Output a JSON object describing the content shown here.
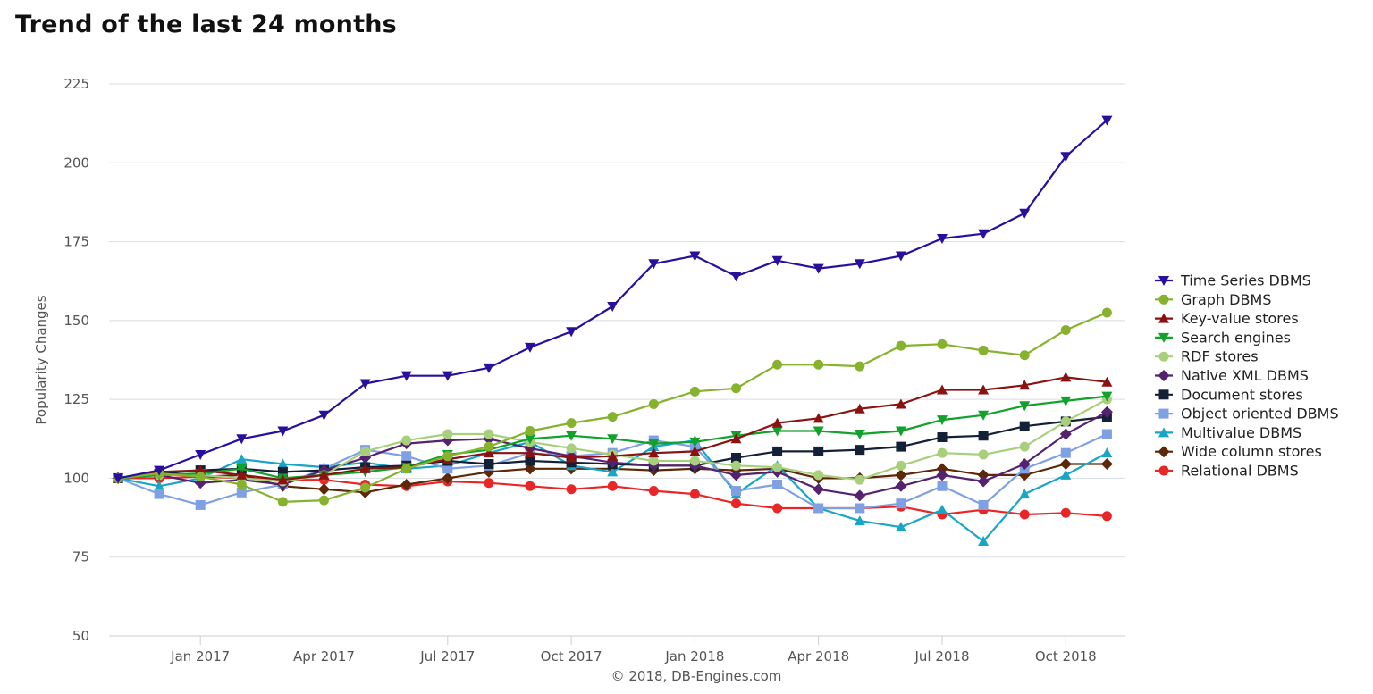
{
  "page": {
    "heading": "Trend of the last 24 months",
    "credit": "© 2018, DB-Engines.com"
  },
  "chart_data": {
    "type": "line",
    "title": "Trend of the last 24 months",
    "ylabel": "Popularity Changes",
    "xlabel": "",
    "ylim": [
      50,
      225
    ],
    "yticks": [
      50,
      75,
      100,
      125,
      150,
      175,
      200,
      225
    ],
    "x": [
      "Nov 2016",
      "Dec 2016",
      "Jan 2017",
      "Feb 2017",
      "Mar 2017",
      "Apr 2017",
      "May 2017",
      "Jun 2017",
      "Jul 2017",
      "Aug 2017",
      "Sep 2017",
      "Oct 2017",
      "Nov 2017",
      "Dec 2017",
      "Jan 2018",
      "Feb 2018",
      "Mar 2018",
      "Apr 2018",
      "May 2018",
      "Jun 2018",
      "Jul 2018",
      "Aug 2018",
      "Sep 2018",
      "Oct 2018",
      "Nov 2018"
    ],
    "xtick_labels": [
      {
        "at": "Jan 2017",
        "label": "Jan 2017"
      },
      {
        "at": "Apr 2017",
        "label": "Apr 2017"
      },
      {
        "at": "Jul 2017",
        "label": "Jul 2017"
      },
      {
        "at": "Oct 2017",
        "label": "Oct 2017"
      },
      {
        "at": "Jan 2018",
        "label": "Jan 2018"
      },
      {
        "at": "Apr 2018",
        "label": "Apr 2018"
      },
      {
        "at": "Jul 2018",
        "label": "Jul 2018"
      },
      {
        "at": "Oct 2018",
        "label": "Oct 2018"
      }
    ],
    "grid": "horizontal",
    "legend_position": "right",
    "series": [
      {
        "name": "Time Series DBMS",
        "color": "#2a0f9e",
        "marker": "triangle-down",
        "values": [
          100,
          102.5,
          107.5,
          112.5,
          115,
          120,
          130,
          132.5,
          132.5,
          135,
          141.5,
          146.5,
          154.5,
          168,
          170.5,
          164,
          169,
          166.5,
          168,
          170.5,
          176,
          177.5,
          184,
          202,
          213.5
        ]
      },
      {
        "name": "Graph DBMS",
        "color": "#86b22d",
        "marker": "circle",
        "values": [
          100,
          101.5,
          100.5,
          98,
          92.5,
          93,
          97,
          103,
          107,
          110,
          115,
          117.5,
          119.5,
          123.5,
          127.5,
          128.5,
          136,
          136,
          135.5,
          142,
          142.5,
          140.5,
          139,
          147,
          152.5
        ]
      },
      {
        "name": "Key-value stores",
        "color": "#8a1212",
        "marker": "triangle-up",
        "values": [
          100,
          102,
          102.5,
          101,
          99.5,
          101,
          103,
          103.5,
          106,
          108,
          108,
          106.5,
          107,
          108,
          108.5,
          112.5,
          117.5,
          119,
          122,
          123.5,
          128,
          128,
          129.5,
          132,
          130.5
        ]
      },
      {
        "name": "Search engines",
        "color": "#12a12a",
        "marker": "triangle-down",
        "values": [
          100,
          101,
          101.5,
          103,
          100,
          101,
          102,
          103.5,
          107.5,
          109,
          112.5,
          113.5,
          112.5,
          111,
          111.5,
          113.5,
          115,
          115,
          114,
          115,
          118.5,
          120,
          123,
          124.5,
          126
        ]
      },
      {
        "name": "RDF stores",
        "color": "#a8cf7c",
        "marker": "circle",
        "values": [
          100,
          101,
          101,
          100,
          99,
          101,
          108.5,
          112,
          114,
          114,
          111.5,
          109.5,
          107.5,
          105.5,
          105.5,
          104,
          103.5,
          101,
          99.5,
          104,
          108,
          107.5,
          110,
          118,
          125
        ]
      },
      {
        "name": "Native XML DBMS",
        "color": "#55226e",
        "marker": "diamond",
        "values": [
          100,
          101,
          98.5,
          99.5,
          98,
          102.5,
          106.5,
          111,
          112,
          112.5,
          109.5,
          107,
          105,
          104,
          104,
          101,
          102,
          96.5,
          94.5,
          97.5,
          101,
          99,
          104.5,
          114,
          121
        ]
      },
      {
        "name": "Document stores",
        "color": "#132036",
        "marker": "square",
        "values": [
          100,
          101.5,
          102.5,
          103,
          102,
          102.5,
          103.5,
          104,
          105.5,
          104.5,
          105.5,
          105,
          104.5,
          104,
          104,
          106.5,
          108.5,
          108.5,
          109,
          110,
          113,
          113.5,
          116.5,
          118,
          119.5
        ]
      },
      {
        "name": "Object oriented DBMS",
        "color": "#7fa1e3",
        "marker": "square",
        "values": [
          100,
          95,
          91.5,
          95.5,
          98,
          103,
          109,
          107,
          103,
          104,
          108,
          107,
          108,
          112,
          110,
          96,
          98,
          90.5,
          90.5,
          92,
          97.5,
          91.5,
          103,
          108,
          114
        ]
      },
      {
        "name": "Multivalue DBMS",
        "color": "#18a5c6",
        "marker": "triangle-up",
        "values": [
          100,
          97.5,
          100,
          106,
          104.5,
          103.5,
          105,
          103,
          104,
          108,
          111.5,
          104,
          102,
          110,
          112,
          95,
          104,
          90.5,
          86.5,
          84.5,
          90,
          80,
          95,
          101,
          108
        ]
      },
      {
        "name": "Wide column stores",
        "color": "#5c2808",
        "marker": "diamond",
        "values": [
          100,
          102,
          100.5,
          101,
          97.5,
          96.5,
          95.5,
          98,
          100,
          102,
          103,
          103,
          103,
          102.5,
          103,
          102.5,
          103,
          100,
          100,
          101,
          103,
          101,
          101,
          104.5,
          104.5
        ]
      },
      {
        "name": "Relational DBMS",
        "color": "#e92626",
        "marker": "circle",
        "values": [
          100,
          100,
          100.5,
          100,
          99.5,
          99.5,
          98,
          97.5,
          99,
          98.5,
          97.5,
          96.5,
          97.5,
          96,
          95,
          92,
          90.5,
          90.5,
          90.5,
          91,
          88.5,
          90,
          88.5,
          89,
          88
        ]
      }
    ]
  }
}
